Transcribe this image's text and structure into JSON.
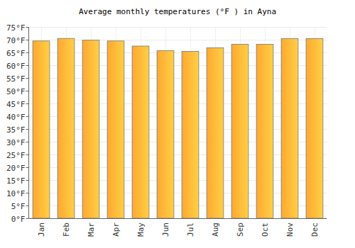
{
  "chart_data": {
    "type": "bar",
    "title": "Average monthly temperatures (°F ) in Ayna",
    "categories": [
      "Jan",
      "Feb",
      "Mar",
      "Apr",
      "May",
      "Jun",
      "Jul",
      "Aug",
      "Sep",
      "Oct",
      "Nov",
      "Dec"
    ],
    "values": [
      69.5,
      70.5,
      69.8,
      69.5,
      67.5,
      65.7,
      65.4,
      66.8,
      68.2,
      68.2,
      70.4,
      70.4
    ],
    "color": "#ffa930",
    "ylim": [
      0,
      75
    ],
    "yticks": [
      {
        "value": 0,
        "label": "0°F"
      },
      {
        "value": 5,
        "label": "5°F"
      },
      {
        "value": 10,
        "label": "10°F"
      },
      {
        "value": 15,
        "label": "15°F"
      },
      {
        "value": 20,
        "label": "20°F"
      },
      {
        "value": 25,
        "label": "25°F"
      },
      {
        "value": 30,
        "label": "30°F"
      },
      {
        "value": 35,
        "label": "35°F"
      },
      {
        "value": 40,
        "label": "40°F"
      },
      {
        "value": 45,
        "label": "45°F"
      },
      {
        "value": 50,
        "label": "50°F"
      },
      {
        "value": 55,
        "label": "55°F"
      },
      {
        "value": 60,
        "label": "60°F"
      },
      {
        "value": 65,
        "label": "65°F"
      },
      {
        "value": 70,
        "label": "70°F"
      },
      {
        "value": 75,
        "label": "75°F"
      }
    ],
    "grid": true
  }
}
